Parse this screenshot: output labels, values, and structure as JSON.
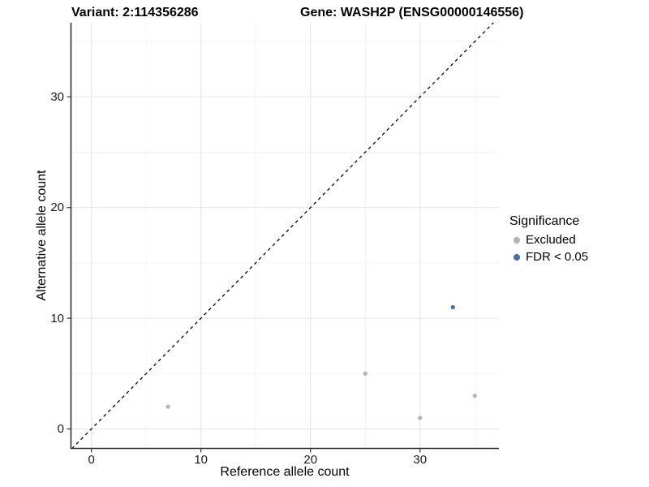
{
  "title": {
    "variant": "Variant: 2:114356286",
    "gene": "Gene: WASH2P (ENSG00000146556)"
  },
  "chart_data": {
    "type": "scatter",
    "xlabel": "Reference allele count",
    "ylabel": "Alternative allele count",
    "xlim": [
      -1.9,
      37.2
    ],
    "ylim": [
      -1.8,
      36.7
    ],
    "x_major_ticks": [
      0,
      10,
      20,
      30
    ],
    "y_major_ticks": [
      0,
      10,
      20,
      30
    ],
    "x_minor_gridlines": [
      5,
      15,
      25,
      35
    ],
    "y_minor_gridlines": [
      5,
      15,
      25,
      35
    ],
    "grid": true,
    "identity_line": {
      "equation": "y = x",
      "style": "dashed",
      "color": "#000000"
    },
    "series": [
      {
        "name": "Excluded",
        "color": "#b5b5b5",
        "points": [
          [
            7,
            2
          ],
          [
            25,
            5
          ],
          [
            30,
            1
          ],
          [
            35,
            3
          ]
        ]
      },
      {
        "name": "FDR < 0.05",
        "color": "#3e70ac",
        "points": [
          [
            33,
            11
          ]
        ]
      }
    ],
    "legend": {
      "title": "Significance",
      "position": "right"
    }
  },
  "colors": {
    "background": "#ffffff",
    "axis_line": "#333333",
    "tick_label": "#1a1a1a",
    "major_grid": "#e6e6e6",
    "minor_grid": "#f2f2f2",
    "excluded_point": "#b5b5b5",
    "significant_point": "#3e70ac"
  }
}
